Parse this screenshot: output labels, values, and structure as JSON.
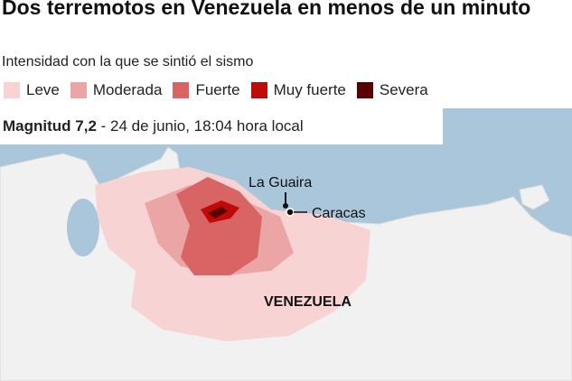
{
  "header": {
    "title": "Dos terremotos en Venezuela en menos de un minuto",
    "subtitle": "Intensidad con la que se sintió el sismo"
  },
  "legend": [
    {
      "name": "Leve",
      "color": "#f8d3d3"
    },
    {
      "name": "Moderada",
      "color": "#eba5a5"
    },
    {
      "name": "Fuerte",
      "color": "#d96464"
    },
    {
      "name": "Muy fuerte",
      "color": "#bf0a0a"
    },
    {
      "name": "Severa",
      "color": "#5a0000"
    }
  ],
  "info": {
    "magnitude": "Magnitud 7,2",
    "date": "- 24 de junio, 18:04 hora local"
  },
  "places": {
    "la_guaira": "La Guaira",
    "caracas": "Caracas",
    "country": "VENEZUELA"
  }
}
